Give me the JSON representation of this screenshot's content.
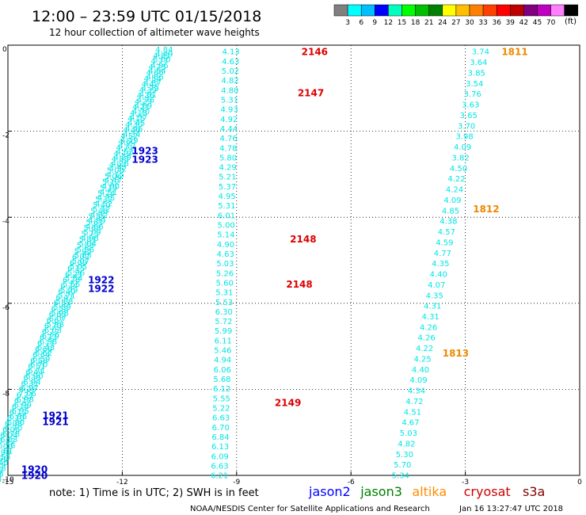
{
  "header": {
    "title": "12:00 – 23:59 UTC 01/15/2018",
    "subtitle": "12 hour collection of altimeter wave heights"
  },
  "colorbar": {
    "unit": "(ft)",
    "colors": [
      "#808080",
      "#00ffff",
      "#00bfff",
      "#0000ff",
      "#00ffbf",
      "#00ff00",
      "#00bf00",
      "#008000",
      "#ffff00",
      "#ffbf00",
      "#ff8000",
      "#ff4000",
      "#ff0000",
      "#c00000",
      "#800080",
      "#c000c0",
      "#ff80ff",
      "#000000"
    ],
    "labels": [
      "3",
      "6",
      "9",
      "12",
      "15",
      "18",
      "21",
      "24",
      "27",
      "30",
      "33",
      "36",
      "39",
      "42",
      "45",
      "70"
    ]
  },
  "axes": {
    "xticks": [
      "-15",
      "-12",
      "-9",
      "-6",
      "-3",
      "0"
    ],
    "yticks": [
      "0",
      "-2",
      "-4",
      "-6",
      "-8",
      "-10"
    ]
  },
  "footer": {
    "note": "note:  1) Time is in UTC; 2) SWH is in feet",
    "legend": [
      {
        "name": "jason2",
        "color": "#0000ff"
      },
      {
        "name": "jason3",
        "color": "#008000"
      },
      {
        "name": "altika",
        "color": "#ff8c00"
      },
      {
        "name": "cryosat",
        "color": "#cc0000"
      },
      {
        "name": "s3a",
        "color": "#800000"
      }
    ],
    "credit": "NOAA/NESDIS Center for Satellite Applications and Research",
    "timestamp": "Jan 16 13:27:47 UTC 2018"
  },
  "chart_data": {
    "type": "scatter",
    "title": "12:00 – 23:59 UTC 01/15/2018",
    "subtitle": "12 hour collection of altimeter wave heights",
    "xlim": [
      -15,
      0
    ],
    "ylim": [
      -10,
      0
    ],
    "value_color": "#00e5e5",
    "tracks": [
      {
        "satellite": "jason2",
        "start": [
          -10.9,
          -0.1
        ],
        "end": [
          -15.4,
          -10.0
        ],
        "values": [
          "4.49",
          "5.00",
          "4.96",
          "4.84",
          "4.86",
          "4.87",
          "4.79",
          "4.81",
          "4.76",
          "4.69",
          "4.70",
          "4.57",
          "4.45",
          "4.46",
          "4.34",
          "4.19",
          "4.12",
          "4.53",
          "4.29",
          "4.28",
          "4.32",
          "4.15",
          "4.47",
          "4.80",
          "4.51",
          "4.35",
          "4.52",
          "5.12",
          "4.82",
          "4.89",
          "4.66",
          "5.09",
          "4.98",
          "5.04",
          "5.56",
          "5.85",
          "5.07",
          "5.05",
          "5.36",
          "5.54",
          "5.55",
          "5.79",
          "5.71",
          "5.83",
          "5.89",
          "5.98",
          "6.07",
          "5.88",
          "6.03",
          "6.29",
          "6.38",
          "6.43",
          "6.62",
          "6.59",
          "6.70",
          "6.71",
          "6.90",
          "6.94",
          "6.97",
          "7.06",
          "6.98",
          "6.99",
          "6.95",
          "6.86",
          "6.80",
          "6.70",
          "6.78",
          "6.63",
          "6.56",
          "6.61",
          "6.55",
          "6.45",
          "6.38",
          "6.25",
          "6.30"
        ]
      },
      {
        "satellite": "jason2",
        "start": [
          -10.9,
          0.0
        ],
        "end": [
          -15.4,
          -9.9
        ],
        "values": [
          "4.84",
          "4.81",
          "4.77",
          "4.75",
          "4.66",
          "4.54",
          "4.42",
          "4.39",
          "4.36",
          "4.29",
          "4.21",
          "4.18",
          "4.15",
          "4.30",
          "4.40",
          "4.52",
          "4.60",
          "4.71",
          "4.79",
          "4.88",
          "4.94",
          "5.00",
          "5.06",
          "5.12",
          "5.19",
          "5.24",
          "5.32",
          "5.40",
          "5.48",
          "5.55",
          "5.61",
          "5.68",
          "5.75",
          "5.81",
          "5.88",
          "5.95",
          "6.02",
          "6.09",
          "6.15",
          "6.21",
          "6.28",
          "6.34",
          "6.40",
          "6.47",
          "6.53",
          "6.58",
          "6.63",
          "6.67",
          "6.70",
          "6.72",
          "6.73",
          "6.71",
          "6.69",
          "6.64",
          "6.58",
          "6.51",
          "6.44",
          "6.38",
          "6.31",
          "6.26",
          "6.21",
          "6.17",
          "6.14",
          "6.12",
          "6.10",
          "6.08",
          "6.06",
          "6.04",
          "6.02",
          "6.00",
          "5.98",
          "5.96",
          "5.94",
          "5.92",
          "5.90"
        ]
      },
      {
        "satellite": "jason2",
        "start": [
          -9.15,
          -0.05
        ],
        "end": [
          -9.45,
          -9.9
        ],
        "values": [
          "4.13",
          "4.63",
          "5.02",
          "4.82",
          "4.80",
          "5.31",
          "4.93",
          "4.92",
          "4.44",
          "4.76",
          "4.78",
          "5.80",
          "4.29",
          "5.21",
          "5.37",
          "4.95",
          "5.31",
          "6.01",
          "5.00",
          "5.14",
          "4.90",
          "4.63",
          "5.03",
          "5.26",
          "5.60",
          "5.31",
          "5.53",
          "6.30",
          "5.72",
          "5.99",
          "6.11",
          "5.46",
          "4.94",
          "6.06",
          "5.68",
          "6.12",
          "5.55",
          "5.22",
          "6.63",
          "6.70",
          "6.84",
          "6.13",
          "6.09",
          "6.63",
          "6.21"
        ]
      },
      {
        "satellite": "jason2",
        "start": [
          -2.6,
          -0.05
        ],
        "end": [
          -4.7,
          -9.9
        ],
        "values": [
          "3.74",
          "3.64",
          "3.85",
          "3.54",
          "3.76",
          "3.63",
          "3.65",
          "3.70",
          "3.98",
          "4.09",
          "3.82",
          "4.50",
          "4.22",
          "4.24",
          "4.09",
          "4.85",
          "4.38",
          "4.57",
          "4.59",
          "4.77",
          "4.35",
          "4.40",
          "4.07",
          "4.35",
          "4.31",
          "4.31",
          "4.26",
          "4.26",
          "4.22",
          "4.25",
          "4.40",
          "4.09",
          "4.34",
          "4.72",
          "4.51",
          "4.67",
          "5.03",
          "4.82",
          "5.30",
          "5.70",
          "5.34"
        ]
      }
    ],
    "time_labels": [
      {
        "text": "2146",
        "x": -7.3,
        "y": -0.05,
        "color": "#dd0000"
      },
      {
        "text": "2147",
        "x": -7.4,
        "y": -1.0,
        "color": "#dd0000"
      },
      {
        "text": "2148",
        "x": -7.6,
        "y": -4.4,
        "color": "#dd0000"
      },
      {
        "text": "2148",
        "x": -7.7,
        "y": -5.45,
        "color": "#dd0000"
      },
      {
        "text": "2149",
        "x": -8.0,
        "y": -8.2,
        "color": "#dd0000"
      },
      {
        "text": "1811",
        "x": -2.05,
        "y": -0.05,
        "color": "#ee8800"
      },
      {
        "text": "1812",
        "x": -2.8,
        "y": -3.7,
        "color": "#ee8800"
      },
      {
        "text": "1813",
        "x": -3.6,
        "y": -7.05,
        "color": "#ee8800"
      },
      {
        "text": "1923",
        "x": -11.75,
        "y": -2.35,
        "color": "#0000cc"
      },
      {
        "text": "1923",
        "x": -11.75,
        "y": -2.55,
        "color": "#0000cc"
      },
      {
        "text": "1922",
        "x": -12.9,
        "y": -5.35,
        "color": "#0000cc"
      },
      {
        "text": "1922",
        "x": -12.9,
        "y": -5.55,
        "color": "#0000cc"
      },
      {
        "text": "1921",
        "x": -14.1,
        "y": -8.5,
        "color": "#0000cc"
      },
      {
        "text": "1921",
        "x": -14.1,
        "y": -8.65,
        "color": "#0000cc"
      },
      {
        "text": "1920",
        "x": -14.65,
        "y": -9.75,
        "color": "#0000cc"
      },
      {
        "text": "1920",
        "x": -14.65,
        "y": -9.9,
        "color": "#0000cc"
      }
    ],
    "grid": true
  }
}
